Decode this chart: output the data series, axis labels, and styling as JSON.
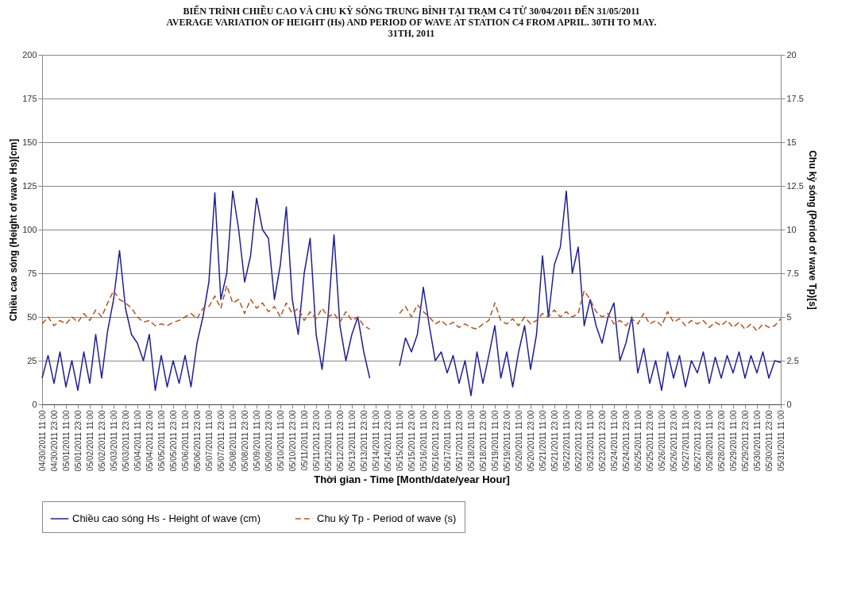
{
  "chart_data": {
    "type": "line",
    "title": "BIẾN TRÌNH CHIỀU CAO VÀ CHU KỲ SÓNG TRUNG BÌNH TẠI TRẠM C4 TỪ 30/04/2011 ĐẾN 31/05/2011\nAVERAGE VARIATION OF HEIGHT (Hs) AND PERIOD OF WAVE AT STATION C4 FROM APRIL. 30TH TO MAY.\n31TH, 2011",
    "xlabel": "Thời gian - Time [Month/date/year Hour]",
    "ylabel": "Chiều cao sóng (Height of wave Hs)[cm]",
    "y2label": "Chu kỳ sóng (Period of wave Tp)[s]",
    "x": [
      "2011-04-30T11:00",
      "2011-04-30T17:00",
      "2011-04-30T23:00",
      "2011-05-01T05:00",
      "2011-05-01T11:00",
      "2011-05-01T17:00",
      "2011-05-01T23:00",
      "2011-05-02T05:00",
      "2011-05-02T11:00",
      "2011-05-02T17:00",
      "2011-05-02T23:00",
      "2011-05-03T05:00",
      "2011-05-03T11:00",
      "2011-05-03T17:00",
      "2011-05-03T23:00",
      "2011-05-04T05:00",
      "2011-05-04T11:00",
      "2011-05-04T17:00",
      "2011-05-04T23:00",
      "2011-05-05T05:00",
      "2011-05-05T11:00",
      "2011-05-05T17:00",
      "2011-05-05T23:00",
      "2011-05-06T05:00",
      "2011-05-06T11:00",
      "2011-05-06T17:00",
      "2011-05-06T23:00",
      "2011-05-07T05:00",
      "2011-05-07T11:00",
      "2011-05-07T17:00",
      "2011-05-07T23:00",
      "2011-05-08T05:00",
      "2011-05-08T11:00",
      "2011-05-08T17:00",
      "2011-05-08T23:00",
      "2011-05-09T05:00",
      "2011-05-09T11:00",
      "2011-05-09T17:00",
      "2011-05-09T23:00",
      "2011-05-10T05:00",
      "2011-05-10T11:00",
      "2011-05-10T17:00",
      "2011-05-10T23:00",
      "2011-05-11T05:00",
      "2011-05-11T11:00",
      "2011-05-11T17:00",
      "2011-05-11T23:00",
      "2011-05-12T05:00",
      "2011-05-12T11:00",
      "2011-05-12T17:00",
      "2011-05-12T23:00",
      "2011-05-13T05:00",
      "2011-05-13T11:00",
      "2011-05-13T17:00",
      "2011-05-13T23:00",
      "2011-05-14T05:00",
      "2011-05-14T11:00",
      "2011-05-14T17:00",
      "2011-05-14T23:00",
      "2011-05-15T05:00",
      "2011-05-15T11:00",
      "2011-05-15T17:00",
      "2011-05-15T23:00",
      "2011-05-16T05:00",
      "2011-05-16T11:00",
      "2011-05-16T17:00",
      "2011-05-16T23:00",
      "2011-05-17T05:00",
      "2011-05-17T11:00",
      "2011-05-17T17:00",
      "2011-05-17T23:00",
      "2011-05-18T05:00",
      "2011-05-18T11:00",
      "2011-05-18T17:00",
      "2011-05-18T23:00",
      "2011-05-19T05:00",
      "2011-05-19T11:00",
      "2011-05-19T17:00",
      "2011-05-19T23:00",
      "2011-05-20T05:00",
      "2011-05-20T11:00",
      "2011-05-20T17:00",
      "2011-05-20T23:00",
      "2011-05-21T05:00",
      "2011-05-21T11:00",
      "2011-05-21T17:00",
      "2011-05-21T23:00",
      "2011-05-22T05:00",
      "2011-05-22T11:00",
      "2011-05-22T17:00",
      "2011-05-22T23:00",
      "2011-05-23T05:00",
      "2011-05-23T11:00",
      "2011-05-23T17:00",
      "2011-05-23T23:00",
      "2011-05-24T05:00",
      "2011-05-24T11:00",
      "2011-05-24T17:00",
      "2011-05-24T23:00",
      "2011-05-25T05:00",
      "2011-05-25T11:00",
      "2011-05-25T17:00",
      "2011-05-25T23:00",
      "2011-05-26T05:00",
      "2011-05-26T11:00",
      "2011-05-26T17:00",
      "2011-05-26T23:00",
      "2011-05-27T05:00",
      "2011-05-27T11:00",
      "2011-05-27T17:00",
      "2011-05-27T23:00",
      "2011-05-28T05:00",
      "2011-05-28T11:00",
      "2011-05-28T17:00",
      "2011-05-28T23:00",
      "2011-05-29T05:00",
      "2011-05-29T11:00",
      "2011-05-29T17:00",
      "2011-05-29T23:00",
      "2011-05-30T05:00",
      "2011-05-30T11:00",
      "2011-05-30T17:00",
      "2011-05-30T23:00",
      "2011-05-31T05:00",
      "2011-05-31T11:00"
    ],
    "series": [
      {
        "name": "Chiều cao sóng Hs - Height of wave (cm)",
        "color": "#1f1f99",
        "line_style": "solid",
        "values": [
          15,
          28,
          12,
          30,
          10,
          25,
          8,
          30,
          12,
          40,
          15,
          42,
          60,
          88,
          55,
          40,
          35,
          25,
          40,
          8,
          28,
          10,
          25,
          12,
          28,
          10,
          35,
          50,
          70,
          121,
          60,
          75,
          122,
          100,
          70,
          85,
          118,
          100,
          95,
          60,
          80,
          113,
          60,
          40,
          75,
          95,
          40,
          20,
          50,
          97,
          45,
          25,
          40,
          50,
          30,
          15,
          null,
          null,
          null,
          null,
          22,
          38,
          30,
          40,
          67,
          45,
          25,
          30,
          18,
          28,
          12,
          25,
          5,
          30,
          12,
          28,
          45,
          15,
          30,
          10,
          30,
          45,
          20,
          40,
          85,
          50,
          80,
          90,
          122,
          75,
          90,
          45,
          60,
          45,
          35,
          50,
          58,
          25,
          35,
          50,
          18,
          32,
          12,
          25,
          8,
          30,
          15,
          28,
          10,
          25,
          18,
          30,
          12,
          27,
          15,
          28,
          18,
          30,
          15,
          28,
          18,
          30,
          15,
          25,
          24
        ]
      },
      {
        "name": "Chu kỳ Tp - Period of wave (s)",
        "color": "#b5541c",
        "line_style": "dashed",
        "axis": "y2",
        "values": [
          4.6,
          5.0,
          4.5,
          4.8,
          4.6,
          5.0,
          4.7,
          5.2,
          4.8,
          5.4,
          5.0,
          5.8,
          6.5,
          6.0,
          5.8,
          5.5,
          5.0,
          4.7,
          4.8,
          4.5,
          4.6,
          4.5,
          4.7,
          4.8,
          5.0,
          5.2,
          4.9,
          5.5,
          5.6,
          6.2,
          5.5,
          6.8,
          5.8,
          6.0,
          5.2,
          6.0,
          5.5,
          5.8,
          5.3,
          5.6,
          5.0,
          5.8,
          5.2,
          5.5,
          4.8,
          5.3,
          4.9,
          5.5,
          5.0,
          5.2,
          4.7,
          5.3,
          4.8,
          5.0,
          4.5,
          4.3,
          null,
          null,
          null,
          null,
          5.2,
          5.6,
          5.0,
          5.7,
          5.3,
          5.0,
          4.6,
          4.8,
          4.5,
          4.7,
          4.4,
          4.6,
          4.4,
          4.3,
          4.6,
          4.8,
          5.8,
          4.8,
          4.6,
          4.9,
          4.5,
          5.0,
          4.6,
          4.8,
          5.2,
          5.0,
          5.4,
          5.0,
          5.3,
          5.0,
          5.2,
          6.5,
          6.0,
          5.3,
          5.0,
          5.2,
          4.6,
          4.8,
          4.5,
          4.9,
          4.6,
          5.2,
          4.6,
          4.8,
          4.5,
          5.3,
          4.7,
          4.9,
          4.5,
          4.8,
          4.6,
          4.8,
          4.4,
          4.7,
          4.5,
          4.8,
          4.4,
          4.7,
          4.3,
          4.6,
          4.2,
          4.6,
          4.4,
          4.5,
          4.9
        ]
      }
    ],
    "xlim": [
      "2011-04-30T11:00",
      "2011-05-31T11:00"
    ],
    "xticks": [
      {
        "value": "2011-04-30T11:00",
        "label": "04/30/2011 11:00"
      },
      {
        "value": "2011-04-30T23:00",
        "label": "04/30/2011 23:00"
      },
      {
        "value": "2011-05-01T11:00",
        "label": "05/01/2011 11:00"
      },
      {
        "value": "2011-05-01T23:00",
        "label": "05/01/2011 23:00"
      },
      {
        "value": "2011-05-02T11:00",
        "label": "05/02/2011 11:00"
      },
      {
        "value": "2011-05-02T23:00",
        "label": "05/02/2011 23:00"
      },
      {
        "value": "2011-05-03T11:00",
        "label": "05/03/2011 11:00"
      },
      {
        "value": "2011-05-03T23:00",
        "label": "05/03/2011 23:00"
      },
      {
        "value": "2011-05-04T11:00",
        "label": "05/04/2011 11:00"
      },
      {
        "value": "2011-05-04T23:00",
        "label": "05/04/2011 23:00"
      },
      {
        "value": "2011-05-05T11:00",
        "label": "05/05/2011 11:00"
      },
      {
        "value": "2011-05-05T23:00",
        "label": "05/05/2011 23:00"
      },
      {
        "value": "2011-05-06T11:00",
        "label": "05/06/2011 11:00"
      },
      {
        "value": "2011-05-06T23:00",
        "label": "05/06/2011 23:00"
      },
      {
        "value": "2011-05-07T11:00",
        "label": "05/07/2011 11:00"
      },
      {
        "value": "2011-05-07T23:00",
        "label": "05/07/2011 23:00"
      },
      {
        "value": "2011-05-08T11:00",
        "label": "05/08/2011 11:00"
      },
      {
        "value": "2011-05-08T23:00",
        "label": "05/08/2011 23:00"
      },
      {
        "value": "2011-05-09T11:00",
        "label": "05/09/2011 11:00"
      },
      {
        "value": "2011-05-09T23:00",
        "label": "05/09/2011 23:00"
      },
      {
        "value": "2011-05-10T11:00",
        "label": "05/10/2011 11:00"
      },
      {
        "value": "2011-05-10T23:00",
        "label": "05/10/2011 23:00"
      },
      {
        "value": "2011-05-11T11:00",
        "label": "05/11/2011 11:00"
      },
      {
        "value": "2011-05-11T23:00",
        "label": "05/11/2011 23:00"
      },
      {
        "value": "2011-05-12T11:00",
        "label": "05/12/2011 11:00"
      },
      {
        "value": "2011-05-12T23:00",
        "label": "05/12/2011 23:00"
      },
      {
        "value": "2011-05-13T11:00",
        "label": "05/13/2011 11:00"
      },
      {
        "value": "2011-05-13T23:00",
        "label": "05/13/2011 23:00"
      },
      {
        "value": "2011-05-14T11:00",
        "label": "05/14/2011 11:00"
      },
      {
        "value": "2011-05-14T23:00",
        "label": "05/14/2011 23:00"
      },
      {
        "value": "2011-05-15T11:00",
        "label": "05/15/2011 11:00"
      },
      {
        "value": "2011-05-15T23:00",
        "label": "05/15/2011 23:00"
      },
      {
        "value": "2011-05-16T11:00",
        "label": "05/16/2011 11:00"
      },
      {
        "value": "2011-05-16T23:00",
        "label": "05/16/2011 23:00"
      },
      {
        "value": "2011-05-17T11:00",
        "label": "05/17/2011 11:00"
      },
      {
        "value": "2011-05-17T23:00",
        "label": "05/17/2011 23:00"
      },
      {
        "value": "2011-05-18T11:00",
        "label": "05/18/2011 11:00"
      },
      {
        "value": "2011-05-18T23:00",
        "label": "05/18/2011 23:00"
      },
      {
        "value": "2011-05-19T11:00",
        "label": "05/19/2011 11:00"
      },
      {
        "value": "2011-05-19T23:00",
        "label": "05/19/2011 23:00"
      },
      {
        "value": "2011-05-20T11:00",
        "label": "05/20/2011 11:00"
      },
      {
        "value": "2011-05-20T23:00",
        "label": "05/20/2011 23:00"
      },
      {
        "value": "2011-05-21T11:00",
        "label": "05/21/2011 11:00"
      },
      {
        "value": "2011-05-21T23:00",
        "label": "05/21/2011 23:00"
      },
      {
        "value": "2011-05-22T11:00",
        "label": "05/22/2011 11:00"
      },
      {
        "value": "2011-05-22T23:00",
        "label": "05/22/2011 23:00"
      },
      {
        "value": "2011-05-23T11:00",
        "label": "05/23/2011 11:00"
      },
      {
        "value": "2011-05-23T23:00",
        "label": "05/23/2011 23:00"
      },
      {
        "value": "2011-05-24T11:00",
        "label": "05/24/2011 11:00"
      },
      {
        "value": "2011-05-24T23:00",
        "label": "05/24/2011 23:00"
      },
      {
        "value": "2011-05-25T11:00",
        "label": "05/25/2011 11:00"
      },
      {
        "value": "2011-05-25T23:00",
        "label": "05/25/2011 23:00"
      },
      {
        "value": "2011-05-26T11:00",
        "label": "05/26/2011 11:00"
      },
      {
        "value": "2011-05-26T23:00",
        "label": "05/26/2011 23:00"
      },
      {
        "value": "2011-05-27T11:00",
        "label": "05/27/2011 11:00"
      },
      {
        "value": "2011-05-27T23:00",
        "label": "05/27/2011 23:00"
      },
      {
        "value": "2011-05-28T11:00",
        "label": "05/28/2011 11:00"
      },
      {
        "value": "2011-05-28T23:00",
        "label": "05/28/2011 23:00"
      },
      {
        "value": "2011-05-29T11:00",
        "label": "05/29/2011 11:00"
      },
      {
        "value": "2011-05-29T23:00",
        "label": "05/29/2011 23:00"
      },
      {
        "value": "2011-05-30T11:00",
        "label": "05/30/2011 11:00"
      },
      {
        "value": "2011-05-30T23:00",
        "label": "05/30/2011 23:00"
      },
      {
        "value": "2011-05-31T11:00",
        "label": "05/31/2011 11:00"
      }
    ],
    "ylim": [
      0,
      200
    ],
    "yticks": [
      0,
      25,
      50,
      75,
      100,
      125,
      150,
      175,
      200
    ],
    "y2lim": [
      0,
      20
    ],
    "y2ticks": [
      0,
      2.5,
      5,
      7.5,
      10,
      12.5,
      15,
      17.5,
      20
    ],
    "grid": "y",
    "legend": "bottom"
  }
}
